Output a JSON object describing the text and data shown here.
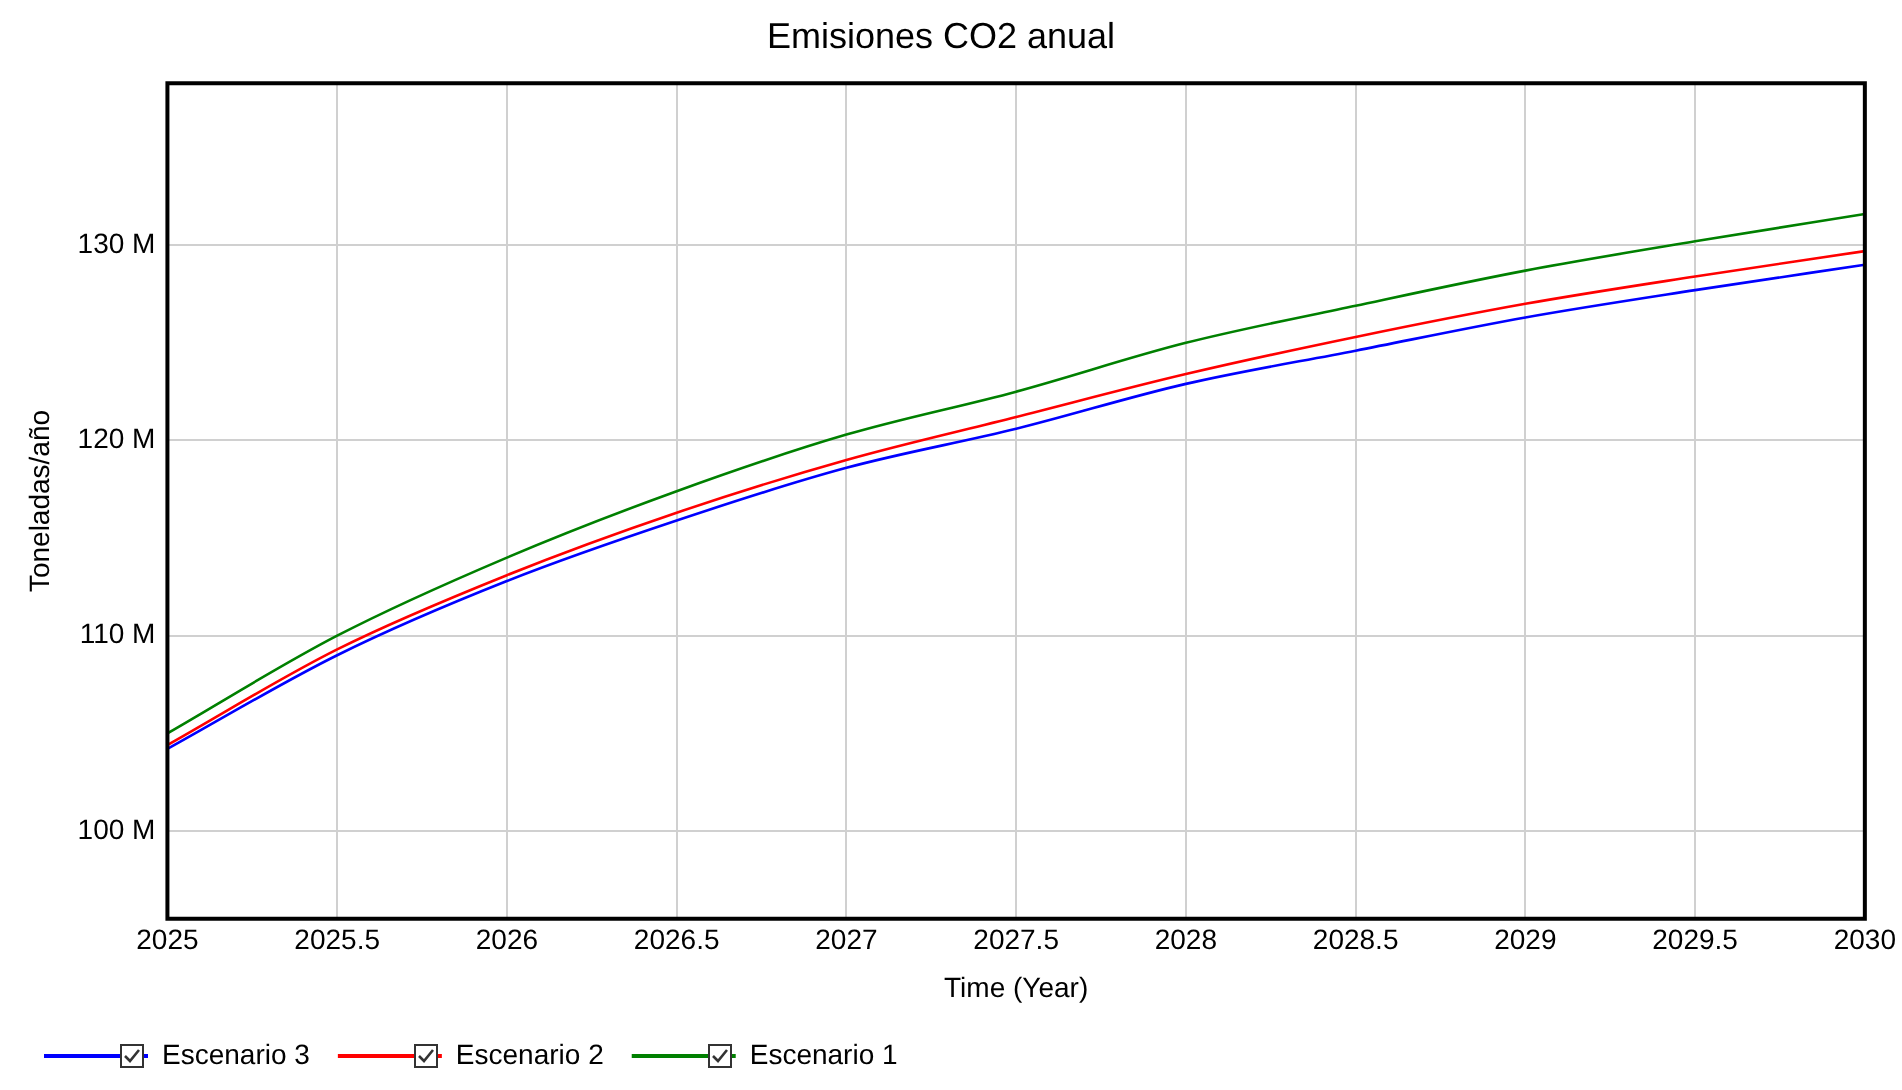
{
  "chart_data": {
    "type": "line",
    "title": "Emisiones CO2 anual",
    "xlabel": "Time (Year)",
    "ylabel": "Toneladas/año",
    "x": [
      2025,
      2025.5,
      2026,
      2026.5,
      2027,
      2027.5,
      2028,
      2028.5,
      2029,
      2029.5,
      2030
    ],
    "series": [
      {
        "name": "Escenario 3",
        "color": "#0000ff",
        "values": [
          104.2,
          109.0,
          112.8,
          115.9,
          118.6,
          120.6,
          122.9,
          124.6,
          126.3,
          127.7,
          129.0
        ]
      },
      {
        "name": "Escenario 2",
        "color": "#ff0000",
        "values": [
          104.4,
          109.3,
          113.1,
          116.3,
          119.0,
          121.2,
          123.4,
          125.3,
          127.0,
          128.4,
          129.7
        ]
      },
      {
        "name": "Escenario 1",
        "color": "#008000",
        "values": [
          105.0,
          110.0,
          114.0,
          117.4,
          120.3,
          122.5,
          125.0,
          126.9,
          128.7,
          130.2,
          131.6
        ]
      }
    ],
    "xlim": [
      2025,
      2030
    ],
    "xticks": [
      2025,
      2025.5,
      2026,
      2026.5,
      2027,
      2027.5,
      2028,
      2028.5,
      2029,
      2029.5,
      2030
    ],
    "ylim": [
      95.5,
      138.3
    ],
    "yticks": [
      {
        "value": 100,
        "label": "100 M"
      },
      {
        "value": 110,
        "label": "110 M"
      },
      {
        "value": 120,
        "label": "120 M"
      },
      {
        "value": 130,
        "label": "130 M"
      }
    ],
    "grid": true,
    "legend": "bottom",
    "marker": "none",
    "line_style": "solid"
  }
}
